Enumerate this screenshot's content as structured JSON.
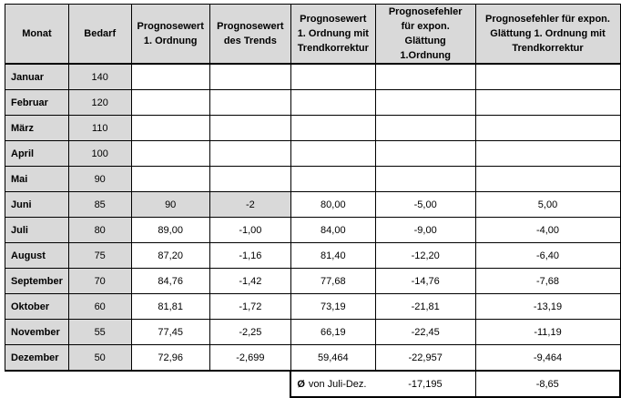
{
  "headers": [
    "Monat",
    "Bedarf",
    "Prognosewert 1. Ordnung",
    "Prognosewert des Trends",
    "Prognosewert 1. Ordnung mit Trendkorrektur",
    "Prognosefehler für expon. Glättung 1.Ordnung",
    "Prognosefehler für expon. Glättung 1. Ordnung mit Trendkorrektur"
  ],
  "rows": [
    {
      "month": "Januar",
      "bedarf": "140",
      "p1": "",
      "trend": "",
      "ptk": "",
      "f1": "",
      "ftk": ""
    },
    {
      "month": "Februar",
      "bedarf": "120",
      "p1": "",
      "trend": "",
      "ptk": "",
      "f1": "",
      "ftk": ""
    },
    {
      "month": "März",
      "bedarf": "110",
      "p1": "",
      "trend": "",
      "ptk": "",
      "f1": "",
      "ftk": ""
    },
    {
      "month": "April",
      "bedarf": "100",
      "p1": "",
      "trend": "",
      "ptk": "",
      "f1": "",
      "ftk": ""
    },
    {
      "month": "Mai",
      "bedarf": "90",
      "p1": "",
      "trend": "",
      "ptk": "",
      "f1": "",
      "ftk": ""
    },
    {
      "month": "Juni",
      "bedarf": "85",
      "p1": "90",
      "trend": "-2",
      "ptk": "80,00",
      "f1": "-5,00",
      "ftk": "5,00"
    },
    {
      "month": "Juli",
      "bedarf": "80",
      "p1": "89,00",
      "trend": "-1,00",
      "ptk": "84,00",
      "f1": "-9,00",
      "ftk": "-4,00"
    },
    {
      "month": "August",
      "bedarf": "75",
      "p1": "87,20",
      "trend": "-1,16",
      "ptk": "81,40",
      "f1": "-12,20",
      "ftk": "-6,40"
    },
    {
      "month": "September",
      "bedarf": "70",
      "p1": "84,76",
      "trend": "-1,42",
      "ptk": "77,68",
      "f1": "-14,76",
      "ftk": "-7,68"
    },
    {
      "month": "Oktober",
      "bedarf": "60",
      "p1": "81,81",
      "trend": "-1,72",
      "ptk": "73,19",
      "f1": "-21,81",
      "ftk": "-13,19"
    },
    {
      "month": "November",
      "bedarf": "55",
      "p1": "77,45",
      "trend": "-2,25",
      "ptk": "66,19",
      "f1": "-22,45",
      "ftk": "-11,19"
    },
    {
      "month": "Dezember",
      "bedarf": "50",
      "p1": "72,96",
      "trend": "-2,699",
      "ptk": "59,464",
      "f1": "-22,957",
      "ftk": "-9,464"
    }
  ],
  "average": {
    "symbol": "Ø",
    "label": "von Juli-Dez.",
    "f1": "-17,195",
    "ftk": "-8,65"
  }
}
